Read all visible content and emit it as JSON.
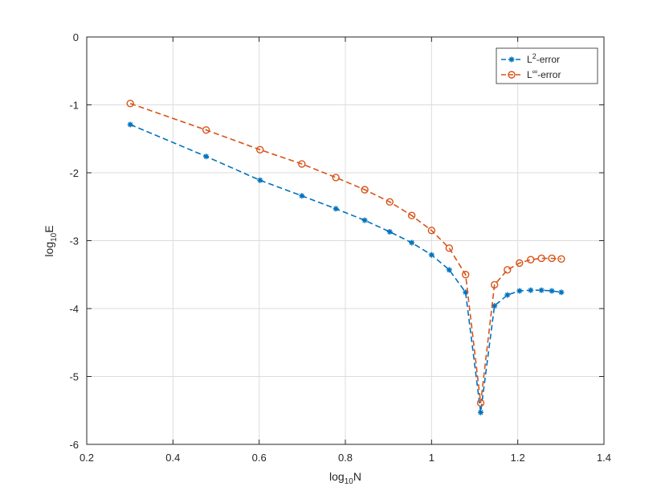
{
  "chart_data": {
    "type": "line",
    "title": "",
    "xlabel": "log",
    "xlabel_sub": "10",
    "xlabel_tail": "N",
    "ylabel": "log",
    "ylabel_sub": "10",
    "ylabel_tail": "E",
    "xlim": [
      0.2,
      1.4
    ],
    "ylim": [
      -6,
      0
    ],
    "xticks": [
      0.2,
      0.4,
      0.6,
      0.8,
      1,
      1.2,
      1.4
    ],
    "xtick_labels": [
      "0.2",
      "0.4",
      "0.6",
      "0.8",
      "1",
      "1.2",
      "1.4"
    ],
    "yticks": [
      0,
      -1,
      -2,
      -3,
      -4,
      -5,
      -6
    ],
    "ytick_labels": [
      "0",
      "-1",
      "-2",
      "-3",
      "-4",
      "-5",
      "-6"
    ],
    "grid": true,
    "legend_position": "top-right",
    "series": [
      {
        "name": "L2-error",
        "legend_base": "L",
        "legend_sup": "2",
        "legend_tail": "-error",
        "color": "#0072BD",
        "marker": "asterisk",
        "line_style": "dashed",
        "x": [
          0.301,
          0.477,
          0.602,
          0.699,
          0.778,
          0.845,
          0.903,
          0.954,
          1.0,
          1.041,
          1.079,
          1.114,
          1.146,
          1.176,
          1.204,
          1.23,
          1.255,
          1.279,
          1.301
        ],
        "y": [
          -1.29,
          -1.76,
          -2.11,
          -2.34,
          -2.53,
          -2.7,
          -2.87,
          -3.03,
          -3.21,
          -3.43,
          -3.76,
          -5.53,
          -3.96,
          -3.8,
          -3.74,
          -3.73,
          -3.73,
          -3.74,
          -3.76
        ]
      },
      {
        "name": "L∞-error",
        "legend_base": "L",
        "legend_sup": "∞",
        "legend_tail": "-error",
        "color": "#D95319",
        "marker": "circle",
        "line_style": "dashed",
        "x": [
          0.301,
          0.477,
          0.602,
          0.699,
          0.778,
          0.845,
          0.903,
          0.954,
          1.0,
          1.041,
          1.079,
          1.114,
          1.146,
          1.176,
          1.204,
          1.23,
          1.255,
          1.279,
          1.301
        ],
        "y": [
          -0.98,
          -1.37,
          -1.66,
          -1.87,
          -2.07,
          -2.25,
          -2.43,
          -2.63,
          -2.85,
          -3.11,
          -3.5,
          -5.39,
          -3.65,
          -3.43,
          -3.33,
          -3.28,
          -3.26,
          -3.26,
          -3.27
        ]
      }
    ]
  }
}
